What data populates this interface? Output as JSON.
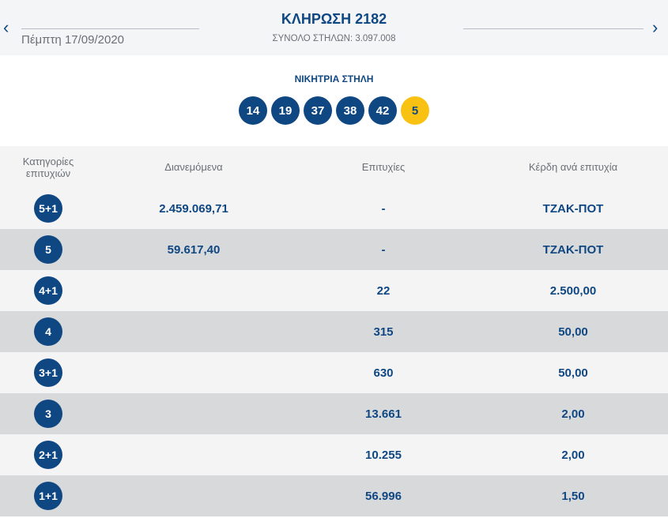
{
  "header": {
    "title": "ΚΛΗΡΩΣΗ 2182",
    "date": "Πέμπτη 17/09/2020",
    "total_columns": "ΣΥΝΟΛΟ ΣΤΗΛΩΝ: 3.097.008",
    "prev": "‹",
    "next": "›"
  },
  "winning": {
    "label": "ΝΙΚΗΤΡΙΑ ΣΤΗΛΗ",
    "numbers": [
      "14",
      "19",
      "37",
      "38",
      "42"
    ],
    "joker": "5"
  },
  "table": {
    "headers": [
      "Κατηγορίες επιτυχιών",
      "Διανεμόμενα",
      "Επιτυχίες",
      "Κέρδη ανά επιτυχία"
    ],
    "rows": [
      {
        "cat": "5+1",
        "dist": "2.459.069,71",
        "wins": "-",
        "prize": "ΤΖΑΚ-ΠΟΤ"
      },
      {
        "cat": "5",
        "dist": "59.617,40",
        "wins": "-",
        "prize": "ΤΖΑΚ-ΠΟΤ"
      },
      {
        "cat": "4+1",
        "dist": "",
        "wins": "22",
        "prize": "2.500,00"
      },
      {
        "cat": "4",
        "dist": "",
        "wins": "315",
        "prize": "50,00"
      },
      {
        "cat": "3+1",
        "dist": "",
        "wins": "630",
        "prize": "50,00"
      },
      {
        "cat": "3",
        "dist": "",
        "wins": "13.661",
        "prize": "2,00"
      },
      {
        "cat": "2+1",
        "dist": "",
        "wins": "10.255",
        "prize": "2,00"
      },
      {
        "cat": "1+1",
        "dist": "",
        "wins": "56.996",
        "prize": "1,50"
      }
    ]
  },
  "colors": {
    "navy": "#0f4783",
    "joker": "#f9c213"
  }
}
